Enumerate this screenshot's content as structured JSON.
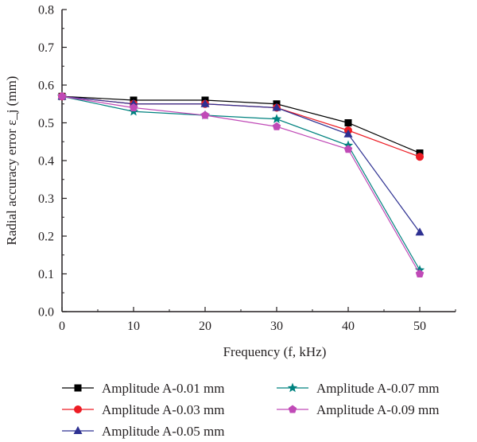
{
  "chart_data": {
    "type": "line",
    "xlabel": "Frequency (f, kHz)",
    "ylabel": "Radial accuracy error ε_j (mm)",
    "x": [
      0,
      10,
      20,
      30,
      40,
      50
    ],
    "xlim": [
      0,
      55
    ],
    "ylim": [
      0,
      0.8
    ],
    "xticks": [
      "0",
      "10",
      "20",
      "30",
      "40",
      "50"
    ],
    "yticks": [
      "0.0",
      "0.1",
      "0.2",
      "0.3",
      "0.4",
      "0.5",
      "0.6",
      "0.7",
      "0.8"
    ],
    "grid": false,
    "legend_position": "bottom",
    "series": [
      {
        "name": "Amplitude A-0.01 mm",
        "color": "#000000",
        "marker": "square",
        "values": [
          0.57,
          0.56,
          0.56,
          0.55,
          0.5,
          0.42
        ]
      },
      {
        "name": "Amplitude A-0.03 mm",
        "color": "#ed1c24",
        "marker": "circle",
        "values": [
          0.57,
          0.55,
          0.55,
          0.54,
          0.48,
          0.41
        ]
      },
      {
        "name": "Amplitude A-0.05 mm",
        "color": "#2e3192",
        "marker": "triangle",
        "values": [
          0.57,
          0.55,
          0.55,
          0.54,
          0.47,
          0.21
        ]
      },
      {
        "name": "Amplitude A-0.07 mm",
        "color": "#00827f",
        "marker": "star",
        "values": [
          0.57,
          0.53,
          0.52,
          0.51,
          0.44,
          0.11
        ]
      },
      {
        "name": "Amplitude A-0.09 mm",
        "color": "#c04ab7",
        "marker": "pentagon",
        "values": [
          0.57,
          0.54,
          0.52,
          0.49,
          0.43,
          0.1
        ]
      }
    ]
  }
}
